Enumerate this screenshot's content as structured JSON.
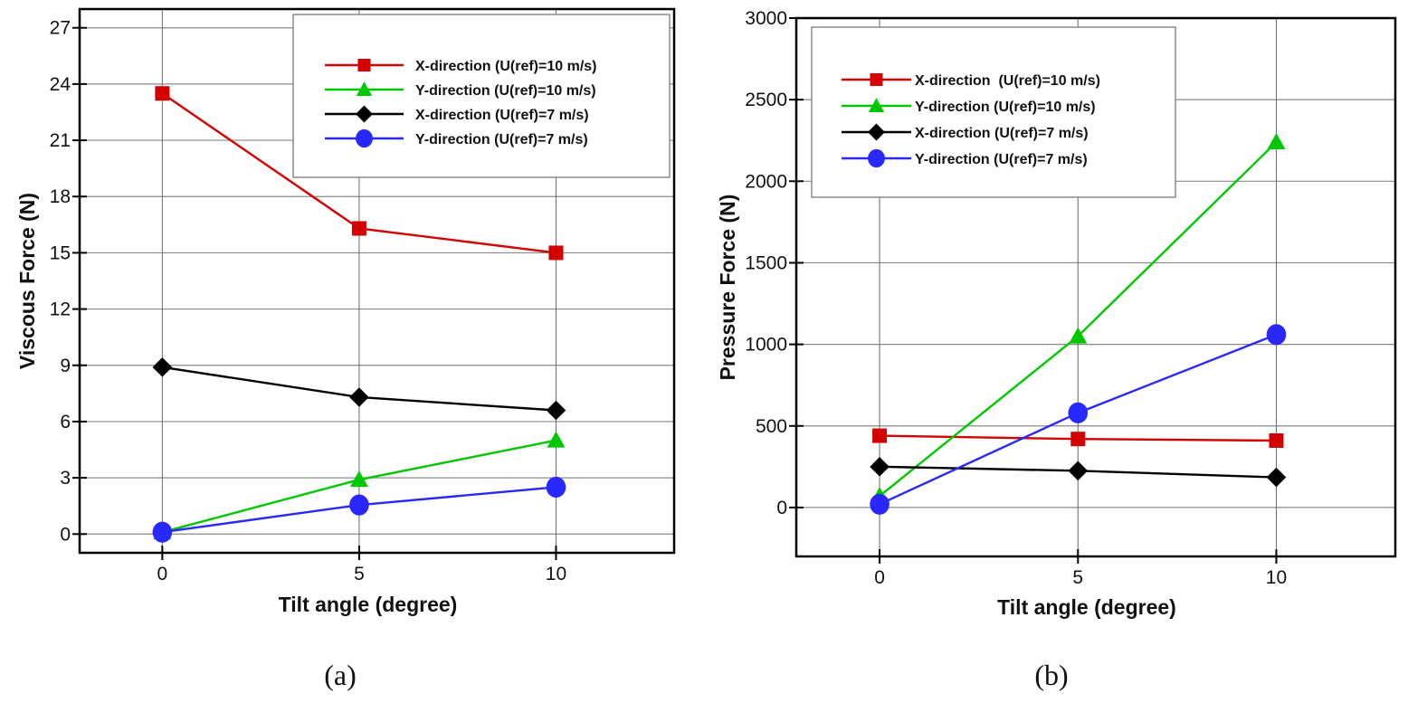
{
  "chart_data": [
    {
      "type": "line",
      "panel_label": "(a)",
      "title": "",
      "xlabel": "Tilt angle (degree)",
      "ylabel": "Viscous Force (N)",
      "x": [
        0,
        5,
        10
      ],
      "xticks": [
        0,
        5,
        10
      ],
      "yticks": [
        0,
        3,
        6,
        9,
        12,
        15,
        18,
        21,
        24,
        27
      ],
      "xlim": [
        -2.1,
        13
      ],
      "ylim": [
        -1.0,
        28.0
      ],
      "grid": true,
      "legend_position": "top-right",
      "series": [
        {
          "name": "X-direction (U(ref)=10 m/s)",
          "color": "#d40000",
          "marker": "square",
          "values": [
            23.5,
            16.3,
            15.0
          ]
        },
        {
          "name": "Y-direction (U(ref)=10 m/s)",
          "color": "#00c800",
          "marker": "triangle",
          "values": [
            0.1,
            2.9,
            5.0
          ]
        },
        {
          "name": "X-direction (U(ref)=7 m/s)",
          "color": "#000000",
          "marker": "diamond",
          "values": [
            8.9,
            7.3,
            6.6
          ]
        },
        {
          "name": "Y-direction (U(ref)=7 m/s)",
          "color": "#2828ff",
          "marker": "circle",
          "values": [
            0.1,
            1.55,
            2.5
          ]
        }
      ]
    },
    {
      "type": "line",
      "panel_label": "(b)",
      "title": "",
      "xlabel": "Tilt angle (degree)",
      "ylabel": "Pressure Force (N)",
      "x": [
        0,
        5,
        10
      ],
      "xticks": [
        0,
        5,
        10
      ],
      "yticks": [
        0,
        500,
        1000,
        1500,
        2000,
        2500,
        3000
      ],
      "xlim": [
        -2.1,
        13
      ],
      "ylim": [
        -300,
        3000
      ],
      "grid": true,
      "legend_position": "top-left",
      "series": [
        {
          "name": "X-direction  (U(ref)=10 m/s)",
          "color": "#d40000",
          "marker": "square",
          "values": [
            440,
            420,
            410
          ]
        },
        {
          "name": "Y-direction (U(ref)=10 m/s)",
          "color": "#00c800",
          "marker": "triangle",
          "values": [
            70,
            1050,
            2240
          ]
        },
        {
          "name": "X-direction (U(ref)=7 m/s)",
          "color": "#000000",
          "marker": "diamond",
          "values": [
            250,
            225,
            185
          ]
        },
        {
          "name": "Y-direction (U(ref)=7 m/s)",
          "color": "#2828ff",
          "marker": "circle",
          "values": [
            20,
            580,
            1060
          ]
        }
      ]
    }
  ]
}
